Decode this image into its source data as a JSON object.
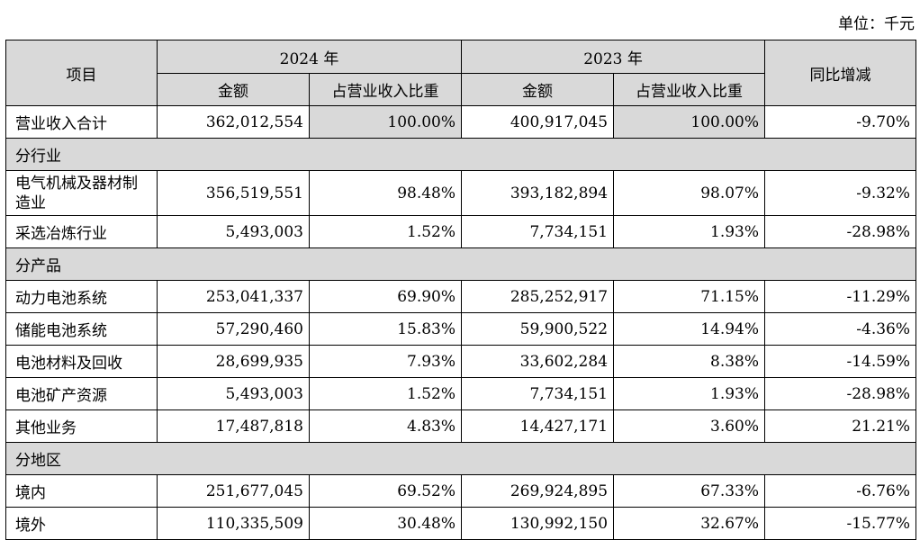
{
  "unit_label": "单位：千元",
  "header": {
    "item": "项目",
    "year_2024": "2024 年",
    "year_2023": "2023 年",
    "yoy": "同比增减",
    "amount": "金额",
    "share": "占营业收入比重"
  },
  "total": {
    "label": "营业收入合计",
    "amt_2024": "362,012,554",
    "pct_2024": "100.00%",
    "amt_2023": "400,917,045",
    "pct_2023": "100.00%",
    "yoy": "-9.70%"
  },
  "sections": [
    {
      "title": "分行业",
      "rows": [
        {
          "label": "电气机械及器材制造业",
          "amt_2024": "356,519,551",
          "pct_2024": "98.48%",
          "amt_2023": "393,182,894",
          "pct_2023": "98.07%",
          "yoy": "-9.32%"
        },
        {
          "label": "采选冶炼行业",
          "amt_2024": "5,493,003",
          "pct_2024": "1.52%",
          "amt_2023": "7,734,151",
          "pct_2023": "1.93%",
          "yoy": "-28.98%"
        }
      ]
    },
    {
      "title": "分产品",
      "rows": [
        {
          "label": "动力电池系统",
          "amt_2024": "253,041,337",
          "pct_2024": "69.90%",
          "amt_2023": "285,252,917",
          "pct_2023": "71.15%",
          "yoy": "-11.29%"
        },
        {
          "label": "储能电池系统",
          "amt_2024": "57,290,460",
          "pct_2024": "15.83%",
          "amt_2023": "59,900,522",
          "pct_2023": "14.94%",
          "yoy": "-4.36%"
        },
        {
          "label": "电池材料及回收",
          "amt_2024": "28,699,935",
          "pct_2024": "7.93%",
          "amt_2023": "33,602,284",
          "pct_2023": "8.38%",
          "yoy": "-14.59%"
        },
        {
          "label": "电池矿产资源",
          "amt_2024": "5,493,003",
          "pct_2024": "1.52%",
          "amt_2023": "7,734,151",
          "pct_2023": "1.93%",
          "yoy": "-28.98%"
        },
        {
          "label": "其他业务",
          "amt_2024": "17,487,818",
          "pct_2024": "4.83%",
          "amt_2023": "14,427,171",
          "pct_2023": "3.60%",
          "yoy": "21.21%"
        }
      ]
    },
    {
      "title": "分地区",
      "rows": [
        {
          "label": "境内",
          "amt_2024": "251,677,045",
          "pct_2024": "69.52%",
          "amt_2023": "269,924,895",
          "pct_2023": "67.33%",
          "yoy": "-6.76%"
        },
        {
          "label": "境外",
          "amt_2024": "110,335,509",
          "pct_2024": "30.48%",
          "amt_2023": "130,992,150",
          "pct_2023": "32.67%",
          "yoy": "-15.77%"
        }
      ]
    }
  ]
}
